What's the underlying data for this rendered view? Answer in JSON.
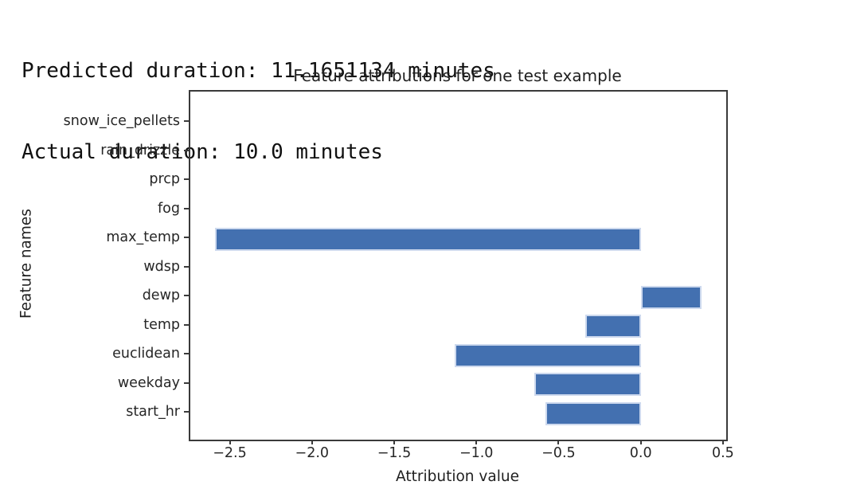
{
  "header": {
    "line1": "Predicted duration: 11.1651134 minutes",
    "line2": "Actual duration: 10.0 minutes"
  },
  "chart_data": {
    "type": "bar",
    "orientation": "horizontal",
    "title": "Feature attributions for one test example",
    "xlabel": "Attribution value",
    "ylabel": "Feature names",
    "categories_top_to_bottom": [
      "snow_ice_pellets",
      "rain_drizzle",
      "prcp",
      "fog",
      "max_temp",
      "wdsp",
      "dewp",
      "temp",
      "euclidean",
      "weekday",
      "start_hr"
    ],
    "values": [
      0,
      0,
      0,
      0,
      -2.59,
      0,
      0.37,
      -0.34,
      -1.13,
      -0.65,
      -0.58
    ],
    "xlim": [
      -2.74,
      0.52
    ],
    "xticks": [
      -2.5,
      -2.0,
      -1.5,
      -1.0,
      -0.5,
      0.0,
      0.5
    ],
    "grid": false,
    "legend": "none",
    "bar_color": "#4370b0",
    "bar_edge_color": "#cdd9ee",
    "axis_color": "#3a3a3a"
  }
}
